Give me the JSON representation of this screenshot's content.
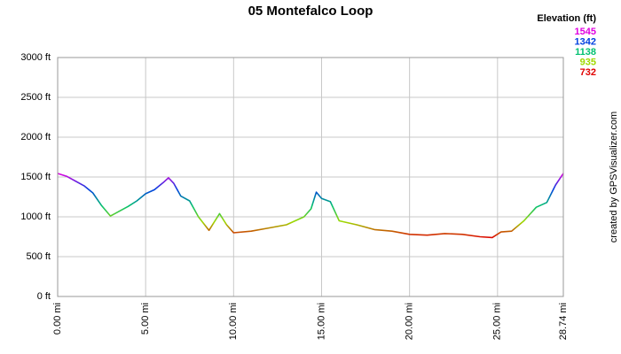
{
  "chart_data": {
    "type": "line",
    "title": "05 Montefalco Loop",
    "legend_title": "Elevation (ft)",
    "credit": "created by GPSVisualizer.com",
    "color_scale": [
      {
        "value": 1545,
        "color": "#e000e0"
      },
      {
        "value": 1342,
        "color": "#0040e0"
      },
      {
        "value": 1138,
        "color": "#00c070"
      },
      {
        "value": 935,
        "color": "#a0d800"
      },
      {
        "value": 732,
        "color": "#e00000"
      }
    ],
    "x": [
      0,
      0.5,
      1.0,
      1.5,
      2.0,
      2.5,
      3.0,
      3.5,
      4.0,
      4.5,
      5.0,
      5.5,
      6.0,
      6.3,
      6.6,
      7.0,
      7.5,
      8.0,
      8.6,
      9.2,
      9.6,
      10.0,
      11,
      12,
      13,
      14,
      14.4,
      14.7,
      15.0,
      15.5,
      16.0,
      17,
      18,
      19,
      20,
      21,
      22,
      23,
      24,
      24.7,
      25.2,
      25.8,
      26.5,
      27.2,
      27.8,
      28.3,
      28.74
    ],
    "series": [
      {
        "name": "Elevation",
        "values": [
          1545,
          1510,
          1450,
          1390,
          1300,
          1140,
          1010,
          1070,
          1130,
          1200,
          1290,
          1340,
          1430,
          1490,
          1420,
          1260,
          1200,
          1000,
          830,
          1040,
          900,
          800,
          820,
          860,
          900,
          1000,
          1100,
          1310,
          1230,
          1190,
          950,
          900,
          840,
          820,
          780,
          770,
          790,
          780,
          750,
          740,
          810,
          820,
          950,
          1120,
          1180,
          1400,
          1545
        ]
      }
    ],
    "xlim": [
      0,
      28.74
    ],
    "xticks": [
      {
        "value": 0,
        "label": "0.00 mi"
      },
      {
        "value": 5,
        "label": "5.00 mi"
      },
      {
        "value": 10,
        "label": "10.00 mi"
      },
      {
        "value": 15,
        "label": "15.00 mi"
      },
      {
        "value": 20,
        "label": "20.00 mi"
      },
      {
        "value": 25,
        "label": "25.00 mi"
      },
      {
        "value": 28.74,
        "label": "28.74 mi"
      }
    ],
    "ylim": [
      0,
      3000
    ],
    "yticks": [
      {
        "value": 0,
        "label": "0 ft"
      },
      {
        "value": 500,
        "label": "500 ft"
      },
      {
        "value": 1000,
        "label": "1000 ft"
      },
      {
        "value": 1500,
        "label": "1500 ft"
      },
      {
        "value": 2000,
        "label": "2000 ft"
      },
      {
        "value": 2500,
        "label": "2500 ft"
      },
      {
        "value": 3000,
        "label": "3000 ft"
      }
    ],
    "grid": true
  }
}
